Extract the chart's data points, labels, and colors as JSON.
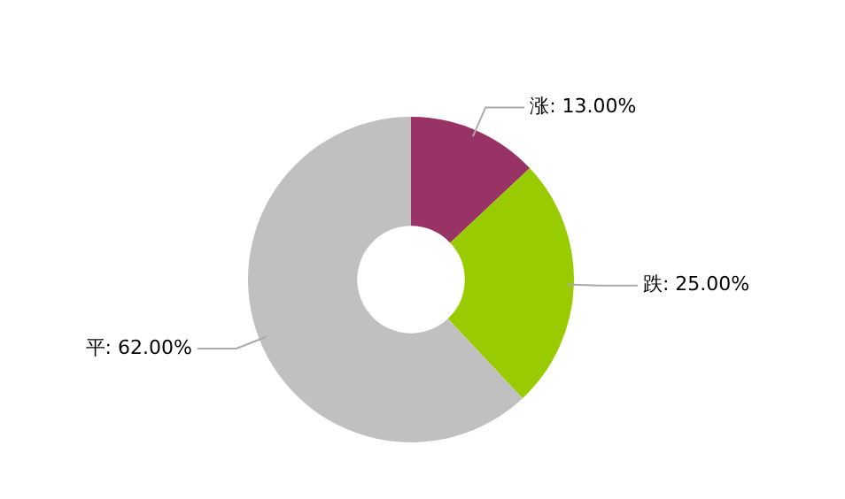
{
  "chart_data": {
    "type": "donut",
    "categories": [
      "涨",
      "跌",
      "平"
    ],
    "values": [
      13,
      25,
      62
    ],
    "colors": [
      "#993366",
      "#99cc00",
      "#c0c0c0"
    ],
    "value_labels": [
      "13.00%",
      "25.00%",
      "62.00%"
    ],
    "legend": false
  }
}
